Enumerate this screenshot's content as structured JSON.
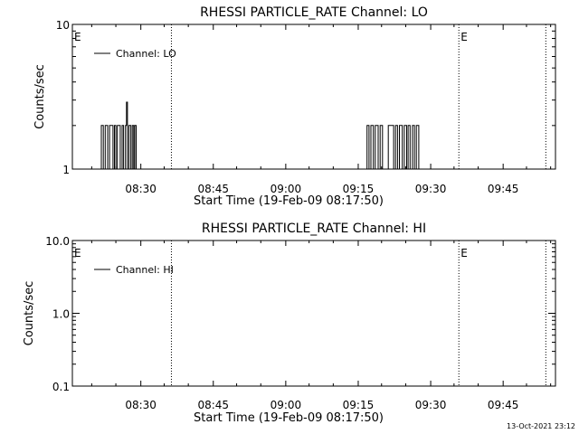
{
  "footer_timestamp": "13-Oct-2021 23:12",
  "chart_data": [
    {
      "type": "line",
      "title": "RHESSI PARTICLE_RATE Channel: LO",
      "xlabel": "Start Time (19-Feb-09 08:17:50)",
      "ylabel": "Counts/sec",
      "yscale": "log",
      "ylim": [
        1,
        10
      ],
      "xlim_minutes": [
        -2,
        98
      ],
      "x_ticks": [
        {
          "label": "08:30",
          "minute": 12.17
        },
        {
          "label": "08:45",
          "minute": 27.17
        },
        {
          "label": "09:00",
          "minute": 42.17
        },
        {
          "label": "09:15",
          "minute": 57.17
        },
        {
          "label": "09:30",
          "minute": 72.17
        },
        {
          "label": "09:45",
          "minute": 87.17
        }
      ],
      "y_ticks": [
        {
          "label": "1",
          "value": 1
        },
        {
          "label": "10",
          "value": 10
        }
      ],
      "legend": {
        "position": "top-left",
        "entries": [
          "Channel: LO"
        ]
      },
      "markers": [
        {
          "label": "E",
          "minute": -2
        },
        {
          "label": "E",
          "minute": 78
        }
      ],
      "dotted_lines_minutes": [
        18.5,
        78,
        96
      ],
      "series": [
        {
          "name": "Channel: LO",
          "points": [
            [
              4,
              1
            ],
            [
              4,
              2
            ],
            [
              4.4,
              2
            ],
            [
              4.4,
              1
            ],
            [
              4.8,
              1
            ],
            [
              4.8,
              2
            ],
            [
              5.3,
              2
            ],
            [
              5.3,
              1
            ],
            [
              5.7,
              1
            ],
            [
              5.7,
              2
            ],
            [
              6.4,
              2
            ],
            [
              6.4,
              1
            ],
            [
              6.7,
              1
            ],
            [
              6.7,
              2
            ],
            [
              7.0,
              2
            ],
            [
              7.0,
              1
            ],
            [
              7.3,
              1
            ],
            [
              7.3,
              2
            ],
            [
              7.9,
              2
            ],
            [
              7.9,
              1
            ],
            [
              8.3,
              1
            ],
            [
              8.3,
              2
            ],
            [
              8.6,
              2
            ],
            [
              8.6,
              1
            ],
            [
              9.0,
              1
            ],
            [
              9.0,
              2
            ],
            [
              9.2,
              2
            ],
            [
              9.2,
              2.9
            ],
            [
              9.4,
              2.9
            ],
            [
              9.4,
              1
            ],
            [
              9.7,
              1
            ],
            [
              9.7,
              2
            ],
            [
              10.1,
              2
            ],
            [
              10.1,
              1
            ],
            [
              10.4,
              1
            ],
            [
              10.4,
              2
            ],
            [
              10.7,
              2
            ],
            [
              10.7,
              1
            ],
            [
              10.9,
              1
            ],
            [
              10.9,
              2
            ],
            [
              11.2,
              2
            ],
            [
              11.2,
              1
            ],
            [
              59.0,
              1
            ],
            [
              59.0,
              2
            ],
            [
              59.4,
              2
            ],
            [
              59.4,
              1
            ],
            [
              59.8,
              1
            ],
            [
              59.8,
              2
            ],
            [
              60.3,
              2
            ],
            [
              60.3,
              1
            ],
            [
              60.7,
              1
            ],
            [
              60.7,
              2
            ],
            [
              61.3,
              2
            ],
            [
              61.3,
              1
            ],
            [
              61.7,
              1
            ],
            [
              61.7,
              2
            ],
            [
              62.2,
              2
            ],
            [
              62.2,
              1
            ],
            [
              63.4,
              1
            ],
            [
              63.4,
              2
            ],
            [
              64.5,
              2
            ],
            [
              64.5,
              1
            ],
            [
              64.9,
              1
            ],
            [
              64.9,
              2
            ],
            [
              65.3,
              2
            ],
            [
              65.3,
              1
            ],
            [
              65.7,
              1
            ],
            [
              65.7,
              2
            ],
            [
              66.3,
              2
            ],
            [
              66.3,
              1
            ],
            [
              66.7,
              1
            ],
            [
              66.7,
              2
            ],
            [
              67.2,
              2
            ],
            [
              67.2,
              1
            ],
            [
              67.5,
              1
            ],
            [
              67.5,
              2
            ],
            [
              67.9,
              2
            ],
            [
              67.9,
              1
            ],
            [
              68.4,
              1
            ],
            [
              68.4,
              2
            ],
            [
              68.8,
              2
            ],
            [
              68.8,
              1
            ],
            [
              69.2,
              1
            ],
            [
              69.2,
              2
            ],
            [
              69.7,
              2
            ],
            [
              69.7,
              1
            ],
            [
              70.0,
              1
            ]
          ]
        }
      ]
    },
    {
      "type": "line",
      "title": "RHESSI PARTICLE_RATE Channel: HI",
      "xlabel": "Start Time (19-Feb-09 08:17:50)",
      "ylabel": "Counts/sec",
      "yscale": "log",
      "ylim": [
        0.1,
        10
      ],
      "xlim_minutes": [
        -2,
        98
      ],
      "x_ticks": [
        {
          "label": "08:30",
          "minute": 12.17
        },
        {
          "label": "08:45",
          "minute": 27.17
        },
        {
          "label": "09:00",
          "minute": 42.17
        },
        {
          "label": "09:15",
          "minute": 57.17
        },
        {
          "label": "09:30",
          "minute": 72.17
        },
        {
          "label": "09:45",
          "minute": 87.17
        }
      ],
      "y_ticks": [
        {
          "label": "0.1",
          "value": 0.1
        },
        {
          "label": "1.0",
          "value": 1.0
        },
        {
          "label": "10.0",
          "value": 10.0
        }
      ],
      "legend": {
        "position": "top-left",
        "entries": [
          "Channel: HI"
        ]
      },
      "markers": [
        {
          "label": "E",
          "minute": -2
        },
        {
          "label": "E",
          "minute": 78
        }
      ],
      "dotted_lines_minutes": [
        18.5,
        78,
        96
      ],
      "series": [
        {
          "name": "Channel: HI",
          "points": []
        }
      ]
    }
  ]
}
